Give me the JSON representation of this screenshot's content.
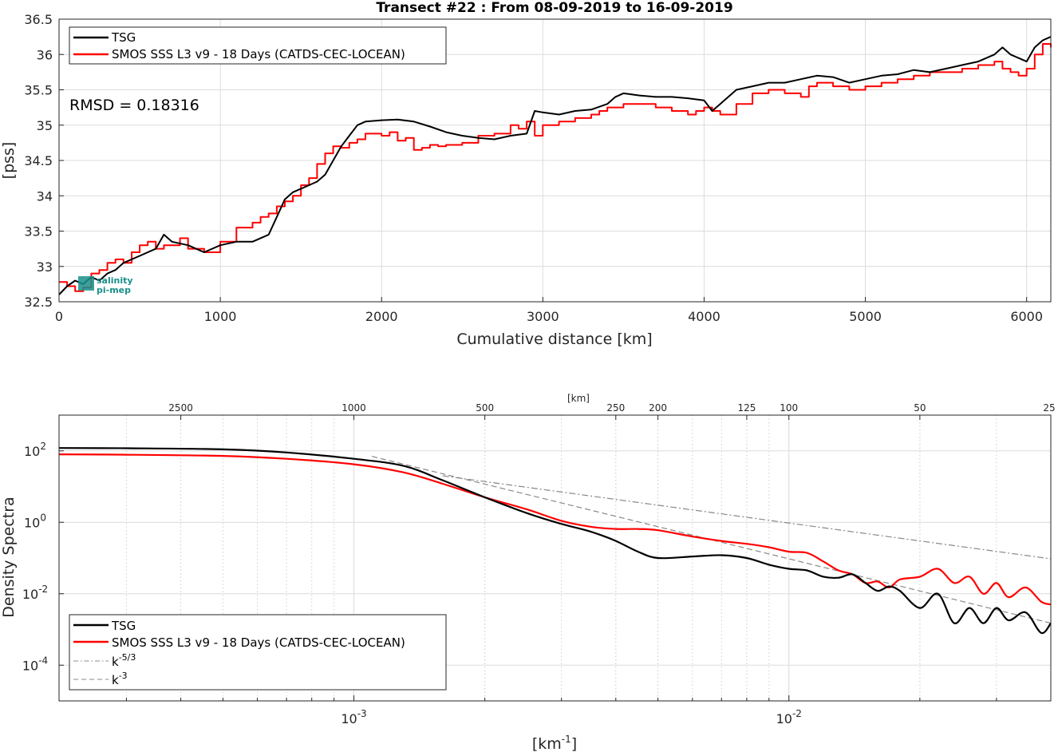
{
  "chart_data": [
    {
      "type": "line",
      "title": "Transect #22 : From 08-09-2019 to 16-09-2019",
      "xlabel": "Cumulative distance [km]",
      "ylabel": "[pss]",
      "xlim": [
        0,
        6150
      ],
      "ylim": [
        32.5,
        36.5
      ],
      "xticks": [
        0,
        1000,
        2000,
        3000,
        4000,
        5000,
        6000
      ],
      "yticks": [
        32.5,
        33,
        33.5,
        34,
        34.5,
        35,
        35.5,
        36,
        36.5
      ],
      "xtick_labels": [
        "0",
        "1000",
        "2000",
        "3000",
        "4000",
        "5000",
        "6000"
      ],
      "ytick_labels": [
        "32.5",
        "33",
        "33.5",
        "34",
        "34.5",
        "35",
        "35.5",
        "36",
        "36.5"
      ],
      "grid": true,
      "legend_position": "top-left",
      "annotation": "RMSD = 0.18316",
      "logo": "salinity pi-mep",
      "series": [
        {
          "name": "TSG",
          "color": "#000000",
          "x": [
            0,
            50,
            100,
            150,
            200,
            250,
            300,
            350,
            400,
            500,
            600,
            650,
            700,
            800,
            900,
            1000,
            1100,
            1200,
            1300,
            1350,
            1400,
            1450,
            1500,
            1550,
            1600,
            1650,
            1700,
            1750,
            1800,
            1850,
            1900,
            2000,
            2100,
            2200,
            2300,
            2400,
            2500,
            2600,
            2700,
            2800,
            2900,
            2950,
            3000,
            3100,
            3200,
            3300,
            3400,
            3450,
            3500,
            3600,
            3700,
            3800,
            3900,
            4000,
            4050,
            4100,
            4200,
            4300,
            4400,
            4500,
            4600,
            4700,
            4800,
            4900,
            5000,
            5100,
            5200,
            5300,
            5400,
            5500,
            5600,
            5700,
            5800,
            5850,
            5900,
            5950,
            6000,
            6050,
            6100,
            6150
          ],
          "y": [
            32.6,
            32.72,
            32.8,
            32.75,
            32.85,
            32.8,
            32.9,
            32.95,
            33.05,
            33.15,
            33.25,
            33.45,
            33.35,
            33.3,
            33.2,
            33.3,
            33.35,
            33.35,
            33.45,
            33.7,
            33.95,
            34.05,
            34.1,
            34.15,
            34.2,
            34.3,
            34.5,
            34.7,
            34.85,
            35.0,
            35.05,
            35.07,
            35.08,
            35.05,
            34.98,
            34.9,
            34.85,
            34.82,
            34.8,
            34.85,
            34.88,
            35.2,
            35.18,
            35.15,
            35.2,
            35.22,
            35.3,
            35.4,
            35.45,
            35.42,
            35.4,
            35.4,
            35.38,
            35.35,
            35.2,
            35.3,
            35.5,
            35.55,
            35.6,
            35.6,
            35.65,
            35.7,
            35.68,
            35.6,
            35.65,
            35.7,
            35.72,
            35.78,
            35.75,
            35.8,
            35.85,
            35.9,
            36.0,
            36.1,
            36.0,
            35.95,
            35.9,
            36.1,
            36.2,
            36.25
          ]
        },
        {
          "name": "SMOS SSS L3 v9 - 18 Days (CATDS-CEC-LOCEAN)",
          "color": "#ff0000",
          "x": [
            0,
            50,
            100,
            150,
            200,
            250,
            300,
            350,
            400,
            450,
            500,
            550,
            600,
            650,
            700,
            750,
            800,
            900,
            1000,
            1100,
            1200,
            1250,
            1300,
            1350,
            1400,
            1450,
            1500,
            1550,
            1600,
            1650,
            1700,
            1750,
            1800,
            1850,
            1900,
            2000,
            2050,
            2100,
            2150,
            2200,
            2250,
            2300,
            2350,
            2400,
            2500,
            2600,
            2700,
            2800,
            2850,
            2900,
            2950,
            3000,
            3100,
            3200,
            3300,
            3350,
            3400,
            3500,
            3600,
            3700,
            3800,
            3850,
            3900,
            3950,
            4000,
            4050,
            4100,
            4200,
            4300,
            4400,
            4500,
            4600,
            4650,
            4700,
            4800,
            4900,
            5000,
            5100,
            5200,
            5300,
            5400,
            5500,
            5600,
            5700,
            5800,
            5850,
            5900,
            5950,
            6000,
            6050,
            6100,
            6150
          ],
          "y": [
            32.78,
            32.72,
            32.65,
            32.7,
            32.9,
            32.95,
            33.05,
            33.1,
            33.05,
            33.2,
            33.3,
            33.35,
            33.25,
            33.3,
            33.3,
            33.4,
            33.25,
            33.2,
            33.35,
            33.55,
            33.62,
            33.7,
            33.75,
            33.85,
            33.92,
            34.0,
            34.15,
            34.25,
            34.45,
            34.6,
            34.7,
            34.68,
            34.75,
            34.8,
            34.88,
            34.85,
            34.9,
            34.78,
            34.82,
            34.65,
            34.68,
            34.72,
            34.7,
            34.72,
            34.75,
            34.85,
            34.88,
            35.0,
            34.95,
            35.05,
            34.85,
            35.0,
            35.05,
            35.1,
            35.15,
            35.2,
            35.25,
            35.3,
            35.3,
            35.25,
            35.2,
            35.2,
            35.15,
            35.2,
            35.25,
            35.2,
            35.15,
            35.3,
            35.45,
            35.5,
            35.45,
            35.4,
            35.55,
            35.6,
            35.55,
            35.5,
            35.55,
            35.6,
            35.65,
            35.7,
            35.75,
            35.75,
            35.8,
            35.85,
            35.9,
            35.8,
            35.75,
            35.7,
            35.8,
            36.0,
            36.15,
            36.1
          ]
        }
      ]
    },
    {
      "type": "line",
      "xlabel_top": "[km]",
      "xlabel": "[km-1]",
      "ylabel": "Density Spectra",
      "x_scale": "log",
      "y_scale": "log",
      "xlim": [
        0.00021,
        0.04
      ],
      "ylim": [
        1e-05,
        1000
      ],
      "xticks_log": [
        0.001,
        0.01
      ],
      "xtick_label_base": "10",
      "xtick_label_exps": [
        "-3",
        "-2"
      ],
      "yticks_log": [
        0.0001,
        0.01,
        1,
        100
      ],
      "ytick_label_base": "10",
      "ytick_label_exps": [
        "-4",
        "-2",
        "0",
        "2"
      ],
      "top_ticks_km": [
        2500,
        1000,
        500,
        250,
        200,
        125,
        100,
        50,
        25
      ],
      "top_tick_labels": [
        "2500",
        "1000",
        "500",
        "250",
        "200",
        "125",
        "100",
        "50",
        "25"
      ],
      "grid": true,
      "legend_position": "bottom-left",
      "series": [
        {
          "name": "TSG",
          "color": "#000000",
          "x": [
            0.00021,
            0.0003,
            0.0005,
            0.0007,
            0.001,
            0.0013,
            0.0016,
            0.002,
            0.0025,
            0.003,
            0.0035,
            0.004,
            0.0045,
            0.005,
            0.006,
            0.007,
            0.008,
            0.009,
            0.01,
            0.011,
            0.012,
            0.013,
            0.014,
            0.015,
            0.016,
            0.017,
            0.018,
            0.02,
            0.022,
            0.024,
            0.026,
            0.028,
            0.03,
            0.032,
            0.035,
            0.038,
            0.04
          ],
          "y": [
            120,
            118,
            110,
            90,
            60,
            38,
            15,
            5,
            1.8,
            0.9,
            0.55,
            0.3,
            0.15,
            0.1,
            0.11,
            0.12,
            0.1,
            0.065,
            0.05,
            0.045,
            0.03,
            0.028,
            0.035,
            0.02,
            0.012,
            0.016,
            0.012,
            0.004,
            0.01,
            0.0015,
            0.004,
            0.0015,
            0.004,
            0.0018,
            0.003,
            0.0008,
            0.0015
          ]
        },
        {
          "name": "SMOS SSS L3 v9 - 18 Days (CATDS-CEC-LOCEAN)",
          "color": "#ff0000",
          "x": [
            0.00021,
            0.0003,
            0.0005,
            0.0007,
            0.001,
            0.0013,
            0.0016,
            0.002,
            0.0025,
            0.003,
            0.0035,
            0.004,
            0.0045,
            0.005,
            0.006,
            0.007,
            0.008,
            0.009,
            0.01,
            0.011,
            0.012,
            0.013,
            0.014,
            0.015,
            0.016,
            0.017,
            0.018,
            0.02,
            0.022,
            0.024,
            0.026,
            0.028,
            0.03,
            0.032,
            0.035,
            0.038,
            0.04
          ],
          "y": [
            80,
            78,
            72,
            60,
            42,
            25,
            12,
            5,
            2.3,
            1.1,
            0.75,
            0.65,
            0.65,
            0.6,
            0.4,
            0.3,
            0.25,
            0.2,
            0.15,
            0.14,
            0.08,
            0.045,
            0.035,
            0.02,
            0.022,
            0.015,
            0.025,
            0.03,
            0.05,
            0.02,
            0.03,
            0.01,
            0.02,
            0.008,
            0.015,
            0.006,
            0.005
          ]
        },
        {
          "name": "k-5/3",
          "color": "#888888",
          "dash": "dashdot",
          "x": [
            0.0016,
            0.04
          ],
          "y": [
            20,
            0.095
          ]
        },
        {
          "name": "k-3",
          "color": "#888888",
          "dash": "dashed",
          "x": [
            0.0011,
            0.04
          ],
          "y": [
            70,
            0.0015
          ]
        }
      ],
      "legend_labels": {
        "tsg": "TSG",
        "smos": "SMOS SSS L3 v9 - 18 Days (CATDS-CEC-LOCEAN)",
        "k53_base": "k",
        "k53_exp": "-5/3",
        "k3_base": "k",
        "k3_exp": "-3"
      },
      "xlabel_base": "[km",
      "xlabel_exp": "-1",
      "xlabel_close": "]"
    }
  ],
  "colors": {
    "tsg": "#000000",
    "smos": "#ff0000",
    "reference": "#888888",
    "logo": "#1a8f8a"
  }
}
